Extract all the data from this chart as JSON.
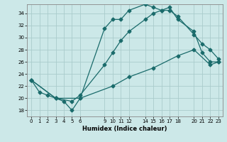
{
  "xlabel": "Humidex (Indice chaleur)",
  "bg_color": "#cce8e8",
  "grid_color": "#aacccc",
  "line_color": "#1a6b6b",
  "xlim": [
    -0.5,
    23.5
  ],
  "ylim": [
    17.0,
    35.5
  ],
  "yticks": [
    18,
    20,
    22,
    24,
    26,
    28,
    30,
    32,
    34
  ],
  "xticks": [
    0,
    1,
    2,
    3,
    4,
    5,
    6,
    9,
    10,
    11,
    12,
    14,
    15,
    16,
    17,
    18,
    20,
    21,
    22,
    23
  ],
  "line1_x": [
    0,
    1,
    2,
    3,
    4,
    5,
    6,
    9,
    10,
    11,
    12,
    14,
    15,
    16,
    17,
    18,
    20,
    21,
    22,
    23
  ],
  "line1_y": [
    23.0,
    21.0,
    20.5,
    20.0,
    19.5,
    18.0,
    20.0,
    31.5,
    33.0,
    33.0,
    34.5,
    35.5,
    35.0,
    34.5,
    35.0,
    33.0,
    31.0,
    27.5,
    26.0,
    26.0
  ],
  "line2_x": [
    0,
    3,
    5,
    6,
    9,
    10,
    11,
    12,
    14,
    15,
    16,
    17,
    18,
    20,
    21,
    22,
    23
  ],
  "line2_y": [
    23.0,
    20.0,
    19.5,
    20.5,
    25.5,
    27.5,
    29.5,
    31.0,
    33.0,
    34.0,
    34.5,
    34.5,
    33.5,
    30.5,
    29.0,
    28.0,
    26.5
  ],
  "line3_x": [
    0,
    3,
    6,
    10,
    12,
    15,
    18,
    20,
    22,
    23
  ],
  "line3_y": [
    23.0,
    20.0,
    20.0,
    22.0,
    23.5,
    25.0,
    27.0,
    28.0,
    25.5,
    26.0
  ]
}
